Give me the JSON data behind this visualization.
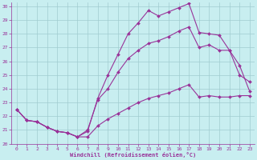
{
  "xlabel": "Windchill (Refroidissement éolien,°C)",
  "bg_color": "#c8eef0",
  "grid_color": "#a0ccd0",
  "line_color": "#993399",
  "xlim": [
    -0.5,
    23.5
  ],
  "ylim": [
    20,
    30.3
  ],
  "xticks": [
    0,
    1,
    2,
    3,
    4,
    5,
    6,
    7,
    8,
    9,
    10,
    11,
    12,
    13,
    14,
    15,
    16,
    17,
    18,
    19,
    20,
    21,
    22,
    23
  ],
  "yticks": [
    20,
    21,
    22,
    23,
    24,
    25,
    26,
    27,
    28,
    29,
    30
  ],
  "series1_x": [
    0,
    1,
    2,
    3,
    4,
    5,
    6,
    7,
    8,
    9,
    10,
    11,
    12,
    13,
    14,
    15,
    16,
    17,
    18,
    19,
    20,
    21,
    22,
    23
  ],
  "series1_y": [
    22.5,
    21.7,
    21.6,
    21.2,
    20.9,
    20.8,
    20.5,
    20.9,
    23.3,
    25.0,
    26.5,
    28.0,
    28.8,
    29.7,
    29.3,
    29.6,
    29.9,
    30.2,
    28.1,
    28.0,
    27.9,
    26.8,
    25.0,
    24.5
  ],
  "series2_x": [
    0,
    1,
    2,
    3,
    4,
    5,
    6,
    7,
    8,
    9,
    10,
    11,
    12,
    13,
    14,
    15,
    16,
    17,
    18,
    19,
    20,
    21,
    22,
    23
  ],
  "series2_y": [
    22.5,
    21.7,
    21.6,
    21.2,
    20.9,
    20.8,
    20.5,
    21.0,
    23.2,
    24.0,
    25.2,
    26.2,
    26.8,
    27.3,
    27.5,
    27.8,
    28.2,
    28.5,
    27.0,
    27.2,
    26.8,
    26.8,
    25.7,
    23.8
  ],
  "series3_x": [
    0,
    1,
    2,
    3,
    4,
    5,
    6,
    7,
    8,
    9,
    10,
    11,
    12,
    13,
    14,
    15,
    16,
    17,
    18,
    19,
    20,
    21,
    22,
    23
  ],
  "series3_y": [
    22.5,
    21.7,
    21.6,
    21.2,
    20.9,
    20.8,
    20.5,
    20.5,
    21.3,
    21.8,
    22.2,
    22.6,
    23.0,
    23.3,
    23.5,
    23.7,
    24.0,
    24.3,
    23.4,
    23.5,
    23.4,
    23.4,
    23.5,
    23.5
  ]
}
